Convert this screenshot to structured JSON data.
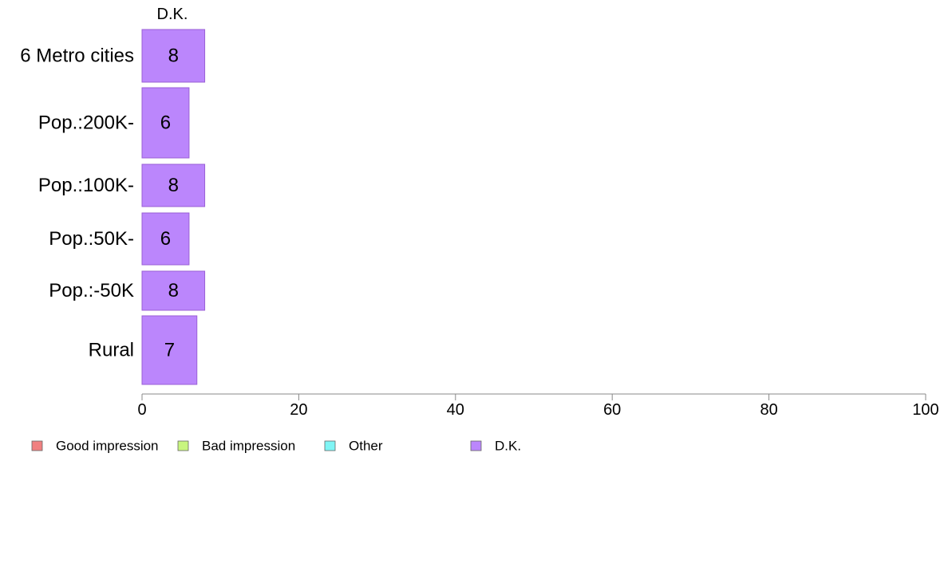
{
  "chart_data": {
    "type": "bar",
    "orientation": "horizontal",
    "stacked": true,
    "categories": [
      "6 Metro cities",
      "Pop.:200K-",
      "Pop.:100K-",
      "Pop.:50K-",
      "Pop.:-50K",
      "Rural"
    ],
    "series": [
      {
        "name": "Good impression",
        "color": "#f08080",
        "values": [
          null,
          null,
          null,
          null,
          null,
          null
        ]
      },
      {
        "name": "Bad impression",
        "color": "#c8f57f",
        "values": [
          null,
          null,
          null,
          null,
          null,
          null
        ]
      },
      {
        "name": "Other",
        "color": "#7ff5f5",
        "values": [
          null,
          null,
          null,
          null,
          null,
          null
        ]
      },
      {
        "name": "D.K.",
        "color": "#bb86fc",
        "values": [
          8,
          6,
          8,
          6,
          8,
          7
        ]
      }
    ],
    "data_labels": [
      "8",
      "6",
      "8",
      "6",
      "8",
      "7"
    ],
    "series_header": "D.K.",
    "xlim": [
      0,
      100
    ],
    "x_ticks": [
      0,
      20,
      40,
      60,
      80,
      100
    ],
    "x_tick_labels": [
      "0",
      "20",
      "40",
      "60",
      "80",
      "100"
    ],
    "grid": false,
    "legend_position": "bottom-left"
  }
}
